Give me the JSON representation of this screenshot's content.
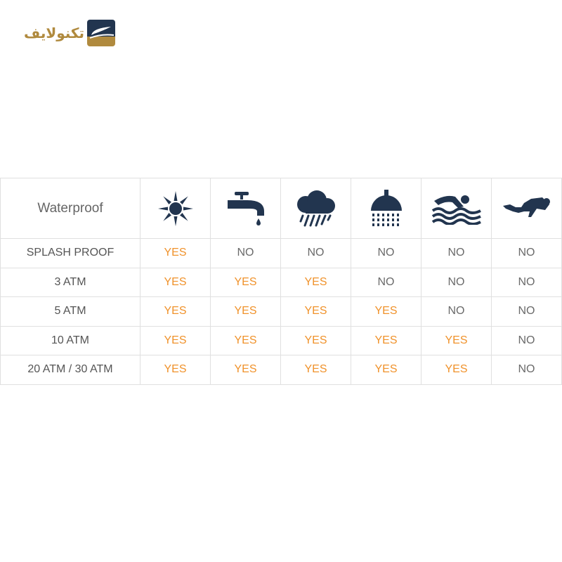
{
  "logo": {
    "text": "تکنولایف"
  },
  "colors": {
    "yes": "#f0922b",
    "no": "#6a6a6a",
    "icon": "#22354f",
    "logo_gold": "#b08a3e",
    "logo_navy": "#22354f"
  },
  "table": {
    "header_label": "Waterproof",
    "columns": [
      {
        "icon": "sun-icon"
      },
      {
        "icon": "faucet-icon"
      },
      {
        "icon": "rain-cloud-icon"
      },
      {
        "icon": "shower-icon"
      },
      {
        "icon": "swimming-icon"
      },
      {
        "icon": "diving-icon"
      }
    ],
    "rows": [
      {
        "label": "SPLASH PROOF",
        "values": [
          "YES",
          "NO",
          "NO",
          "NO",
          "NO",
          "NO"
        ]
      },
      {
        "label": "3 ATM",
        "values": [
          "YES",
          "YES",
          "YES",
          "NO",
          "NO",
          "NO"
        ]
      },
      {
        "label": "5 ATM",
        "values": [
          "YES",
          "YES",
          "YES",
          "YES",
          "NO",
          "NO"
        ]
      },
      {
        "label": "10 ATM",
        "values": [
          "YES",
          "YES",
          "YES",
          "YES",
          "YES",
          "NO"
        ]
      },
      {
        "label": "20 ATM / 30 ATM",
        "values": [
          "YES",
          "YES",
          "YES",
          "YES",
          "YES",
          "NO"
        ]
      }
    ]
  }
}
